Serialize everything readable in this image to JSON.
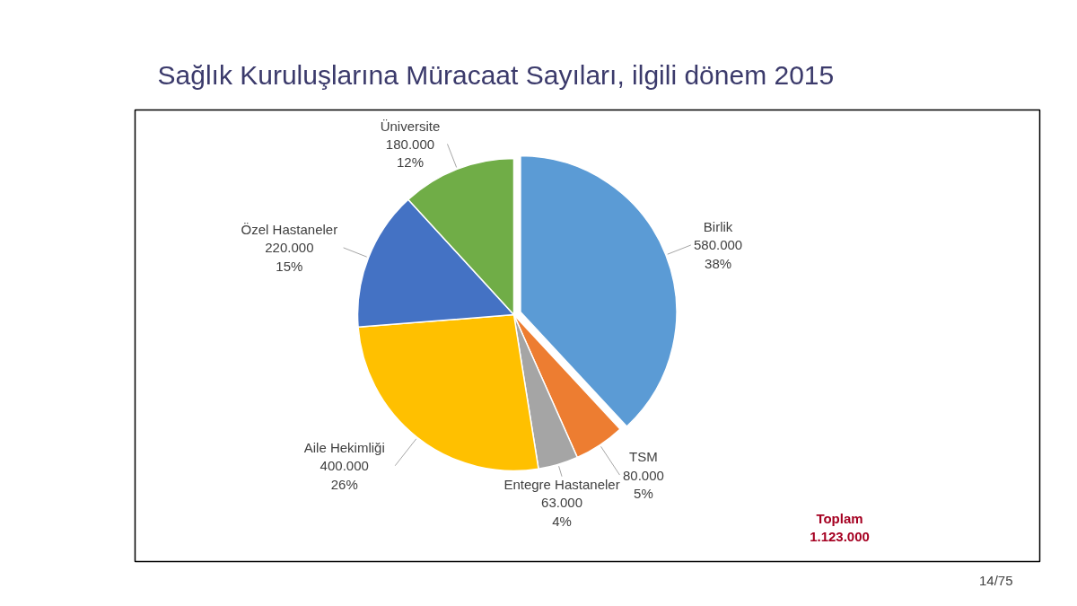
{
  "chart_data": {
    "type": "pie",
    "title": "Sağlık Kuruluşlarına Müracaat Sayıları, ilgili dönem 2015",
    "categories": [
      "Birlik",
      "TSM",
      "Entegre Hastaneler",
      "Aile Hekimliği",
      "Özel Hastaneler",
      "Üniversite"
    ],
    "values": [
      580000,
      80000,
      63000,
      400000,
      220000,
      180000
    ],
    "colors": [
      "#5b9bd5",
      "#ed7d31",
      "#a5a5a5",
      "#ffc000",
      "#4472c4",
      "#70ad47"
    ],
    "value_labels": [
      "580.000\n38%",
      "80.000\n5%",
      "63.000\n4%",
      "400.000\n26%",
      "220.000\n15%",
      "180.000\n12%"
    ],
    "annotations": [
      "Toplam\n1.123.000",
      "14/75"
    ]
  }
}
